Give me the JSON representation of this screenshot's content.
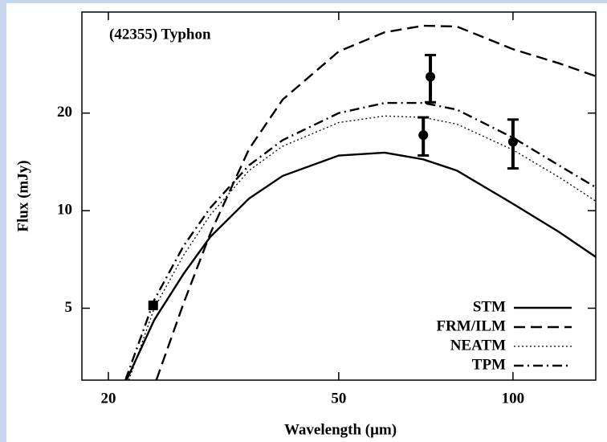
{
  "chart_data": {
    "type": "line",
    "annotation": "(42355) Typhon",
    "xlabel": "Wavelength (μm)",
    "ylabel": "Flux (mJy)",
    "xscale": "log",
    "yscale": "log",
    "xlim": [
      18,
      139
    ],
    "ylim": [
      3,
      41
    ],
    "xticks": [
      20,
      50,
      100
    ],
    "yticks": [
      5,
      10,
      20
    ],
    "legend": "lower right",
    "series": [
      {
        "name": "STM",
        "color": "#000000",
        "style": "solid",
        "x": [
          21.5,
          24,
          27,
          30,
          35,
          40,
          50,
          60,
          70,
          80,
          100,
          120,
          139
        ],
        "values": [
          3,
          4.6,
          6.4,
          8.3,
          10.9,
          12.8,
          14.8,
          15.1,
          14.4,
          13.3,
          10.5,
          8.6,
          7.2
        ]
      },
      {
        "name": "FRM/ILM",
        "color": "#000000",
        "style": "dashed",
        "x": [
          24.2,
          27,
          30,
          35,
          40,
          50,
          60,
          70,
          80,
          100,
          120,
          139
        ],
        "values": [
          3,
          5.2,
          8.5,
          15.5,
          22,
          31,
          35.5,
          37.2,
          37,
          31.5,
          28.5,
          26
        ]
      },
      {
        "name": "NEATM",
        "color": "#000000",
        "style": "dotted",
        "x": [
          21.7,
          24,
          27,
          30,
          35,
          40,
          50,
          60,
          70,
          80,
          100,
          120,
          139
        ],
        "values": [
          3,
          5.0,
          7.3,
          9.7,
          13.3,
          15.8,
          18.7,
          19.6,
          19.4,
          18.5,
          15.4,
          12.7,
          10.7
        ]
      },
      {
        "name": "TPM",
        "color": "#000000",
        "style": "dashdot",
        "x": [
          21.4,
          24,
          27,
          30,
          35,
          40,
          50,
          60,
          70,
          80,
          100,
          120,
          139
        ],
        "values": [
          3,
          5.3,
          7.8,
          10.2,
          13.8,
          16.5,
          20,
          21.5,
          21.5,
          20.5,
          16.8,
          13.8,
          11.8
        ]
      }
    ],
    "measurements": {
      "color": "#000000",
      "x": [
        23.9,
        72,
        70,
        100
      ],
      "values": [
        5.1,
        25.9,
        17.1,
        16.3
      ],
      "errors": [
        null,
        4.3,
        2.3,
        2.8
      ],
      "markers": [
        "square",
        "circle",
        "circle",
        "circle"
      ]
    }
  }
}
